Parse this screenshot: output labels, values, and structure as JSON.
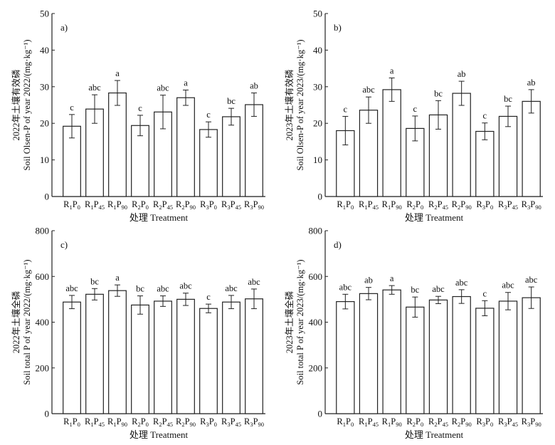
{
  "chart_data": [
    {
      "type": "bar",
      "panel_label": "a)",
      "ylabel_cn": "2022年土壤有效磷",
      "ylabel": "Soil Olsen-P of year 2022/(mg·kg⁻¹)",
      "xlabel": "处理 Treatment",
      "ylim": [
        0,
        50
      ],
      "yticks": [
        0,
        10,
        20,
        30,
        40,
        50
      ],
      "categories": [
        "R1P0",
        "R1P45",
        "R1P90",
        "R2P0",
        "R2P45",
        "R2P90",
        "R3P0",
        "R3P45",
        "R3P90"
      ],
      "values": [
        19.2,
        23.9,
        28.3,
        19.4,
        23.1,
        27.0,
        18.3,
        21.8,
        25.1
      ],
      "errors": [
        3.2,
        3.9,
        3.4,
        2.8,
        4.6,
        2.1,
        2.1,
        2.3,
        3.2
      ],
      "letters": [
        "c",
        "abc",
        "a",
        "c",
        "abc",
        "a",
        "c",
        "bc",
        "ab"
      ]
    },
    {
      "type": "bar",
      "panel_label": "b)",
      "ylabel_cn": "2023年土壤有效磷",
      "ylabel": "Soil Olsen-P of year 2023/(mg·kg⁻¹)",
      "xlabel": "处理 Treatment",
      "ylim": [
        0,
        50
      ],
      "yticks": [
        0,
        10,
        20,
        30,
        40,
        50
      ],
      "categories": [
        "R1P0",
        "R1P45",
        "R1P90",
        "R2P0",
        "R2P45",
        "R2P90",
        "R3P0",
        "R3P45",
        "R3P90"
      ],
      "values": [
        18.0,
        23.6,
        29.2,
        18.6,
        22.3,
        28.2,
        17.8,
        21.9,
        26.0
      ],
      "errors": [
        3.9,
        3.6,
        3.2,
        3.4,
        3.9,
        3.3,
        2.3,
        2.8,
        3.2
      ],
      "letters": [
        "c",
        "abc",
        "a",
        "c",
        "bc",
        "ab",
        "c",
        "bc",
        "ab"
      ]
    },
    {
      "type": "bar",
      "panel_label": "c)",
      "ylabel_cn": "2022年土壤全磷",
      "ylabel": "Soil total P of year 2022/(mg·kg⁻¹)",
      "xlabel": "处理 Treatment",
      "ylim": [
        0,
        800
      ],
      "yticks": [
        0,
        200,
        400,
        600,
        800
      ],
      "categories": [
        "R1P0",
        "R1P45",
        "R1P90",
        "R2P0",
        "R2P45",
        "R2P90",
        "R3P0",
        "R3P45",
        "R3P90"
      ],
      "values": [
        488,
        522,
        538,
        475,
        492,
        500,
        460,
        488,
        502
      ],
      "errors": [
        29,
        25,
        25,
        40,
        23,
        27,
        19,
        29,
        43
      ],
      "letters": [
        "abc",
        "bc",
        "a",
        "bc",
        "abc",
        "abc",
        "c",
        "abc",
        "abc"
      ]
    },
    {
      "type": "bar",
      "panel_label": "d)",
      "ylabel_cn": "2023年土壤全磷",
      "ylabel": "Soil total P of year 2023/(mg·kg⁻¹)",
      "xlabel": "处理 Treatment",
      "ylim": [
        0,
        800
      ],
      "yticks": [
        0,
        200,
        400,
        600,
        800
      ],
      "categories": [
        "R1P0",
        "R1P45",
        "R1P90",
        "R2P0",
        "R2P45",
        "R2P90",
        "R3P0",
        "R3P45",
        "R3P90"
      ],
      "values": [
        490,
        525,
        541,
        466,
        497,
        512,
        461,
        492,
        507
      ],
      "errors": [
        32,
        27,
        19,
        44,
        16,
        30,
        33,
        38,
        47
      ],
      "letters": [
        "abc",
        "ab",
        "a",
        "bc",
        "abc",
        "abc",
        "c",
        "abc",
        "abc"
      ]
    }
  ]
}
